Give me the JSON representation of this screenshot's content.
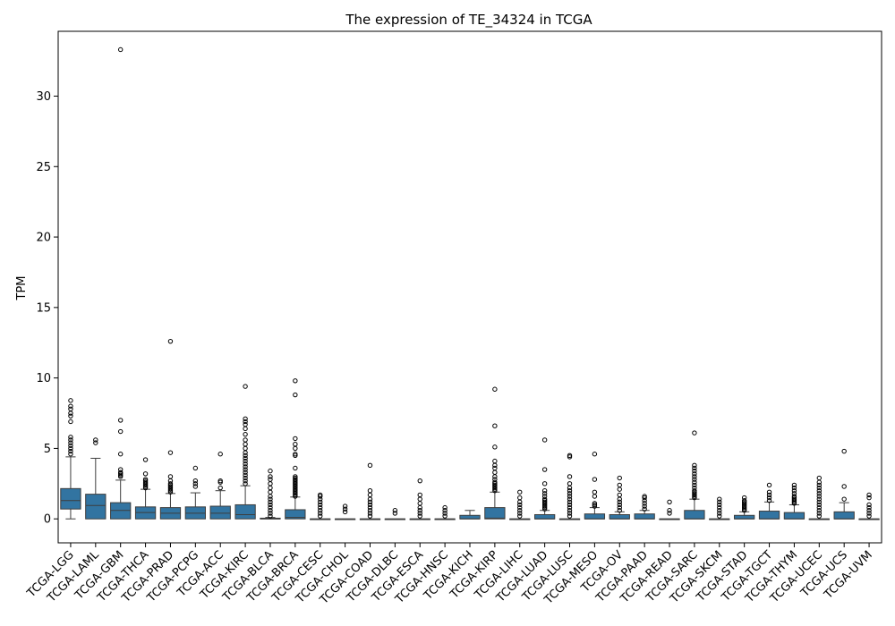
{
  "chart_data": {
    "type": "box",
    "title": "The expression of TE_34324 in TCGA",
    "xlabel": "",
    "ylabel": "TPM",
    "ylim": [
      -1.7,
      34.6
    ],
    "yticks": [
      0,
      5,
      10,
      15,
      20,
      25,
      30
    ],
    "grid": false,
    "box_color": "#3274a1",
    "categories": [
      "TCGA-LGG",
      "TCGA-LAML",
      "TCGA-GBM",
      "TCGA-THCA",
      "TCGA-PRAD",
      "TCGA-PCPG",
      "TCGA-ACC",
      "TCGA-KIRC",
      "TCGA-BLCA",
      "TCGA-BRCA",
      "TCGA-CESC",
      "TCGA-CHOL",
      "TCGA-COAD",
      "TCGA-DLBC",
      "TCGA-ESCA",
      "TCGA-HNSC",
      "TCGA-KICH",
      "TCGA-KIRP",
      "TCGA-LIHC",
      "TCGA-LUAD",
      "TCGA-LUSC",
      "TCGA-MESO",
      "TCGA-OV",
      "TCGA-PAAD",
      "TCGA-READ",
      "TCGA-SARC",
      "TCGA-SKCM",
      "TCGA-STAD",
      "TCGA-TGCT",
      "TCGA-THYM",
      "TCGA-UCEC",
      "TCGA-UCS",
      "TCGA-UVM"
    ],
    "boxes": [
      {
        "min": 0,
        "q1": 0.7,
        "median": 1.3,
        "q3": 2.15,
        "max": 4.4,
        "outliers": [
          4.6,
          4.8,
          5.0,
          5.2,
          5.4,
          5.6,
          5.8,
          6.9,
          7.3,
          7.5,
          7.8,
          8.0,
          8.4
        ]
      },
      {
        "min": 0,
        "q1": 0.0,
        "median": 0.95,
        "q3": 1.75,
        "max": 4.3,
        "outliers": [
          5.4,
          5.6
        ]
      },
      {
        "min": 0,
        "q1": 0.0,
        "median": 0.6,
        "q3": 1.15,
        "max": 2.75,
        "outliers": [
          3.0,
          3.1,
          3.2,
          3.3,
          3.5,
          4.6,
          6.2,
          7.0,
          33.3
        ]
      },
      {
        "min": 0,
        "q1": 0.0,
        "median": 0.45,
        "q3": 0.85,
        "max": 2.1,
        "outliers": [
          2.2,
          2.3,
          2.4,
          2.5,
          2.6,
          2.7,
          2.8,
          3.2,
          4.2
        ]
      },
      {
        "min": 0,
        "q1": 0.0,
        "median": 0.4,
        "q3": 0.8,
        "max": 1.8,
        "outliers": [
          1.9,
          2.0,
          2.1,
          2.2,
          2.3,
          2.4,
          2.5,
          2.7,
          3.0,
          4.7,
          12.6
        ]
      },
      {
        "min": 0,
        "q1": 0.0,
        "median": 0.4,
        "q3": 0.85,
        "max": 1.85,
        "outliers": [
          2.3,
          2.5,
          2.7,
          3.6
        ]
      },
      {
        "min": 0,
        "q1": 0.0,
        "median": 0.4,
        "q3": 0.9,
        "max": 2.0,
        "outliers": [
          2.2,
          2.6,
          2.7,
          4.6
        ]
      },
      {
        "min": 0,
        "q1": 0.0,
        "median": 0.3,
        "q3": 1.0,
        "max": 2.35,
        "outliers": [
          2.5,
          2.7,
          2.9,
          3.1,
          3.3,
          3.5,
          3.7,
          3.9,
          4.1,
          4.3,
          4.5,
          4.7,
          5.0,
          5.3,
          5.6,
          6.0,
          6.4,
          6.7,
          6.9,
          7.1,
          9.4
        ]
      },
      {
        "min": 0,
        "q1": 0.0,
        "median": 0.0,
        "q3": 0.05,
        "max": 0.1,
        "outliers": [
          0.2,
          0.4,
          0.6,
          0.8,
          1.0,
          1.2,
          1.4,
          1.6,
          1.9,
          2.2,
          2.5,
          2.8,
          3.0,
          3.4
        ]
      },
      {
        "min": 0,
        "q1": 0.0,
        "median": 0.1,
        "q3": 0.65,
        "max": 1.55,
        "outliers": [
          1.6,
          1.7,
          1.8,
          1.9,
          2.0,
          2.1,
          2.2,
          2.3,
          2.4,
          2.5,
          2.6,
          2.7,
          2.8,
          2.9,
          3.0,
          3.6,
          4.5,
          4.6,
          5.0,
          5.3,
          5.7,
          8.8,
          9.8
        ]
      },
      {
        "min": 0,
        "q1": 0.0,
        "median": 0.0,
        "q3": 0.0,
        "max": 0.0,
        "outliers": [
          0.2,
          0.4,
          0.6,
          0.8,
          1.0,
          1.2,
          1.4,
          1.6,
          1.7
        ]
      },
      {
        "min": 0,
        "q1": 0.0,
        "median": 0.0,
        "q3": 0.0,
        "max": 0.0,
        "outliers": [
          0.5,
          0.7,
          0.9
        ]
      },
      {
        "min": 0,
        "q1": 0.0,
        "median": 0.0,
        "q3": 0.0,
        "max": 0.0,
        "outliers": [
          0.2,
          0.4,
          0.6,
          0.8,
          1.0,
          1.2,
          1.4,
          1.7,
          2.0,
          3.8
        ]
      },
      {
        "min": 0,
        "q1": 0.0,
        "median": 0.0,
        "q3": 0.0,
        "max": 0.0,
        "outliers": [
          0.4,
          0.6
        ]
      },
      {
        "min": 0,
        "q1": 0.0,
        "median": 0.0,
        "q3": 0.0,
        "max": 0.0,
        "outliers": [
          0.2,
          0.4,
          0.6,
          0.8,
          1.1,
          1.4,
          1.7,
          2.7
        ]
      },
      {
        "min": 0,
        "q1": 0.0,
        "median": 0.0,
        "q3": 0.0,
        "max": 0.0,
        "outliers": [
          0.2,
          0.4,
          0.6,
          0.8
        ]
      },
      {
        "min": 0,
        "q1": 0.0,
        "median": 0.0,
        "q3": 0.25,
        "max": 0.6,
        "outliers": []
      },
      {
        "min": 0,
        "q1": 0.0,
        "median": 0.05,
        "q3": 0.8,
        "max": 1.9,
        "outliers": [
          2.0,
          2.1,
          2.2,
          2.3,
          2.4,
          2.5,
          2.6,
          2.8,
          3.0,
          3.3,
          3.6,
          3.8,
          4.1,
          5.1,
          6.6,
          9.2
        ]
      },
      {
        "min": 0,
        "q1": 0.0,
        "median": 0.0,
        "q3": 0.0,
        "max": 0.0,
        "outliers": [
          0.2,
          0.4,
          0.6,
          0.8,
          1.0,
          1.2,
          1.5,
          1.9
        ]
      },
      {
        "min": 0,
        "q1": 0.0,
        "median": 0.0,
        "q3": 0.3,
        "max": 0.6,
        "outliers": [
          0.7,
          0.8,
          0.9,
          1.0,
          1.1,
          1.2,
          1.3,
          1.4,
          1.6,
          1.8,
          2.0,
          2.5,
          3.5,
          5.6
        ]
      },
      {
        "min": 0,
        "q1": 0.0,
        "median": 0.0,
        "q3": 0.0,
        "max": 0.0,
        "outliers": [
          0.2,
          0.4,
          0.6,
          0.8,
          1.0,
          1.2,
          1.4,
          1.6,
          1.8,
          2.0,
          2.2,
          2.5,
          3.0,
          4.4,
          4.5
        ]
      },
      {
        "min": 0,
        "q1": 0.0,
        "median": 0.0,
        "q3": 0.35,
        "max": 0.8,
        "outliers": [
          0.9,
          1.0,
          1.1,
          1.6,
          1.9,
          2.8,
          4.6
        ]
      },
      {
        "min": 0,
        "q1": 0.0,
        "median": 0.0,
        "q3": 0.3,
        "max": 0.5,
        "outliers": [
          0.6,
          0.8,
          1.0,
          1.2,
          1.4,
          1.7,
          2.1,
          2.4,
          2.9
        ]
      },
      {
        "min": 0,
        "q1": 0.0,
        "median": 0.0,
        "q3": 0.35,
        "max": 0.6,
        "outliers": [
          0.7,
          0.9,
          1.1,
          1.3,
          1.5,
          1.6
        ]
      },
      {
        "min": 0,
        "q1": 0.0,
        "median": 0.0,
        "q3": 0.0,
        "max": 0.0,
        "outliers": [
          0.4,
          0.6,
          1.2
        ]
      },
      {
        "min": 0,
        "q1": 0.0,
        "median": 0.0,
        "q3": 0.6,
        "max": 1.4,
        "outliers": [
          1.5,
          1.6,
          1.7,
          1.8,
          1.9,
          2.0,
          2.2,
          2.4,
          2.6,
          2.8,
          3.0,
          3.2,
          3.4,
          3.6,
          3.8,
          6.1
        ]
      },
      {
        "min": 0,
        "q1": 0.0,
        "median": 0.0,
        "q3": 0.0,
        "max": 0.0,
        "outliers": [
          0.2,
          0.4,
          0.6,
          0.8,
          1.0,
          1.2,
          1.4
        ]
      },
      {
        "min": 0,
        "q1": 0.0,
        "median": 0.0,
        "q3": 0.25,
        "max": 0.5,
        "outliers": [
          0.6,
          0.7,
          0.8,
          0.9,
          1.0,
          1.1,
          1.2,
          1.3,
          1.5
        ]
      },
      {
        "min": 0,
        "q1": 0.0,
        "median": 0.0,
        "q3": 0.55,
        "max": 1.2,
        "outliers": [
          1.3,
          1.5,
          1.7,
          1.9,
          2.4
        ]
      },
      {
        "min": 0,
        "q1": 0.0,
        "median": 0.0,
        "q3": 0.45,
        "max": 1.0,
        "outliers": [
          1.1,
          1.2,
          1.3,
          1.4,
          1.5,
          1.6,
          1.8,
          2.0,
          2.2,
          2.4
        ]
      },
      {
        "min": 0,
        "q1": 0.0,
        "median": 0.0,
        "q3": 0.0,
        "max": 0.0,
        "outliers": [
          0.2,
          0.4,
          0.6,
          0.8,
          1.0,
          1.2,
          1.4,
          1.6,
          1.8,
          2.0,
          2.2,
          2.4,
          2.6,
          2.9
        ]
      },
      {
        "min": 0,
        "q1": 0.0,
        "median": 0.0,
        "q3": 0.5,
        "max": 1.15,
        "outliers": [
          1.4,
          2.3,
          4.8
        ]
      },
      {
        "min": 0,
        "q1": 0.0,
        "median": 0.0,
        "q3": 0.0,
        "max": 0.0,
        "outliers": [
          0.2,
          0.4,
          0.6,
          0.8,
          1.0,
          1.5,
          1.7
        ]
      }
    ]
  }
}
